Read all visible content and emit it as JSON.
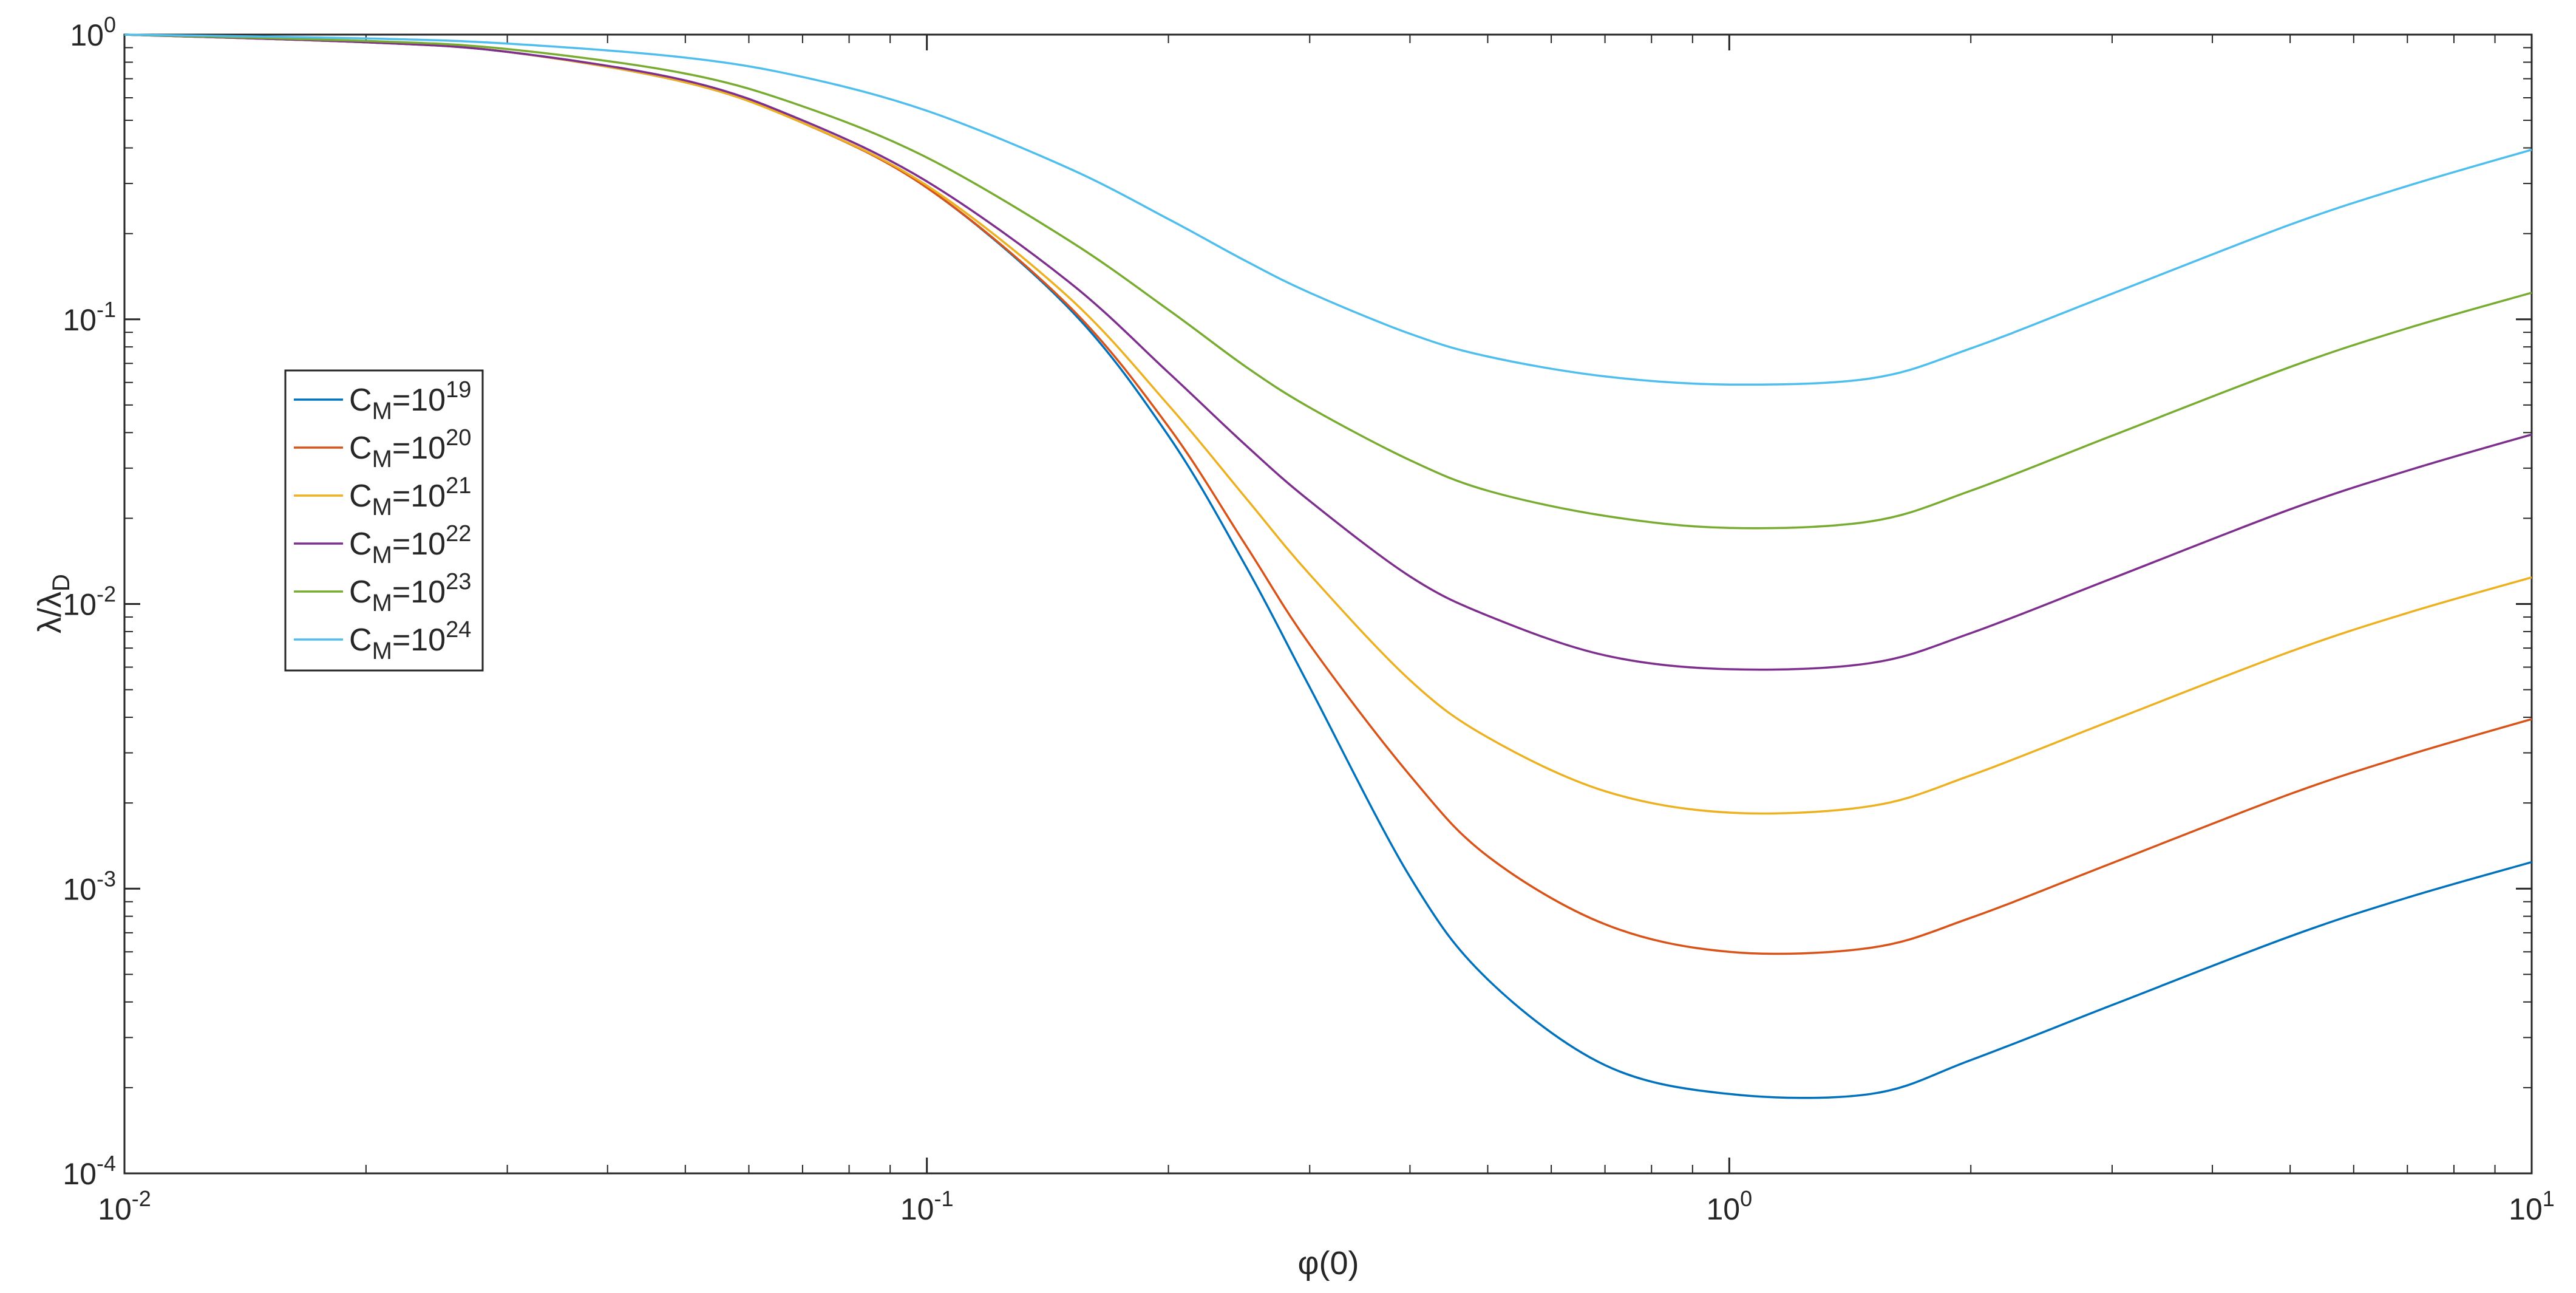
{
  "chart_data": {
    "type": "line",
    "title": "",
    "xlabel": "φ(0)",
    "ylabel": "λ/λD",
    "xscale": "log",
    "yscale": "log",
    "xlim": [
      0.01,
      10
    ],
    "ylim": [
      0.0001,
      1
    ],
    "grid": false,
    "legend_position": "left",
    "x_ticks": [
      {
        "base": "10",
        "exp": "-2"
      },
      {
        "base": "10",
        "exp": "-1"
      },
      {
        "base": "10",
        "exp": "0"
      },
      {
        "base": "10",
        "exp": "1"
      }
    ],
    "y_ticks": [
      {
        "base": "10",
        "exp": "-4"
      },
      {
        "base": "10",
        "exp": "-3"
      },
      {
        "base": "10",
        "exp": "-2"
      },
      {
        "base": "10",
        "exp": "-1"
      },
      {
        "base": "10",
        "exp": "0"
      }
    ],
    "x": [
      0.01,
      0.02,
      0.03,
      0.05,
      0.07,
      0.1,
      0.15,
      0.2,
      0.25,
      0.3,
      0.4,
      0.5,
      0.7,
      1.0,
      1.5,
      2.0,
      3.0,
      5.0,
      7.0,
      10.0
    ],
    "series": [
      {
        "name_base": "C",
        "name_sub": "M",
        "name_eq": "=10",
        "name_sup": "19",
        "color": "#0072BD",
        "values": [
          1.0,
          0.94,
          0.87,
          0.68,
          0.49,
          0.29,
          0.11,
          0.039,
          0.0135,
          0.0051,
          0.0011,
          0.00048,
          0.00024,
          0.00019,
          0.00019,
          0.00025,
          0.00039,
          0.00068,
          0.00093,
          0.00124
        ]
      },
      {
        "name_base": "C",
        "name_sub": "M",
        "name_eq": "=10",
        "name_sup": "20",
        "color": "#D95319",
        "values": [
          1.0,
          0.94,
          0.87,
          0.68,
          0.49,
          0.29,
          0.112,
          0.042,
          0.016,
          0.0072,
          0.0025,
          0.0013,
          0.00075,
          0.0006,
          0.00062,
          0.00079,
          0.00123,
          0.00215,
          0.00294,
          0.00394
        ]
      },
      {
        "name_base": "C",
        "name_sub": "M",
        "name_eq": "=10",
        "name_sup": "21",
        "color": "#EDB120",
        "values": [
          1.0,
          0.94,
          0.87,
          0.68,
          0.49,
          0.295,
          0.12,
          0.05,
          0.0235,
          0.0127,
          0.0054,
          0.0034,
          0.0022,
          0.00185,
          0.00195,
          0.0025,
          0.0039,
          0.0068,
          0.0093,
          0.0124
        ]
      },
      {
        "name_base": "C",
        "name_sub": "M",
        "name_eq": "=10",
        "name_sup": "22",
        "color": "#7E2F8E",
        "values": [
          1.0,
          0.94,
          0.87,
          0.69,
          0.5,
          0.305,
          0.136,
          0.065,
          0.036,
          0.023,
          0.0125,
          0.0091,
          0.0066,
          0.0059,
          0.0062,
          0.0079,
          0.0123,
          0.0215,
          0.0294,
          0.0394
        ]
      },
      {
        "name_base": "C",
        "name_sub": "M",
        "name_eq": "=10",
        "name_sup": "23",
        "color": "#77AC30",
        "values": [
          1.0,
          0.95,
          0.89,
          0.73,
          0.56,
          0.37,
          0.19,
          0.108,
          0.068,
          0.049,
          0.032,
          0.025,
          0.0204,
          0.0185,
          0.0195,
          0.025,
          0.039,
          0.068,
          0.093,
          0.124
        ]
      },
      {
        "name_base": "C",
        "name_sub": "M",
        "name_eq": "=10",
        "name_sup": "24",
        "color": "#4DBEEE",
        "values": [
          1.0,
          0.97,
          0.93,
          0.83,
          0.71,
          0.54,
          0.34,
          0.225,
          0.16,
          0.124,
          0.089,
          0.074,
          0.063,
          0.059,
          0.062,
          0.079,
          0.123,
          0.215,
          0.294,
          0.394
        ]
      }
    ]
  }
}
